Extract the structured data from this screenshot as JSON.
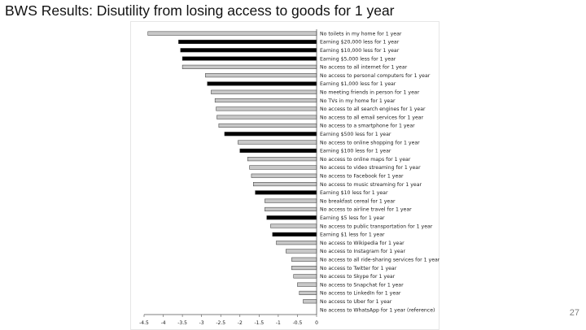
{
  "slide": {
    "title": "BWS Results: Disutility from losing access to goods for 1 year",
    "page_number": "27"
  },
  "colors": {
    "good_bar": "#c8c8c8",
    "money_bar": "#000000",
    "bar_outline": "#333333",
    "axis": "#555555"
  },
  "chart_data": {
    "type": "bar",
    "orientation": "horizontal",
    "title": "",
    "xlabel": "",
    "ylabel": "",
    "xlim": [
      -4.5,
      0
    ],
    "x_direction": "reversed",
    "xticks": [
      -4.5,
      -4,
      -3.5,
      -3,
      -2.5,
      -2,
      -1.5,
      -1,
      -0.5,
      0
    ],
    "xtick_labels": [
      "-4.5",
      "-4",
      "-3.5",
      "-3",
      "-2.5",
      "-2",
      "-1.5",
      "-1",
      "-0.5",
      "0"
    ],
    "grid": false,
    "legend": "none",
    "categories": [
      "No toilets in my home for 1 year",
      "Earning $20,000 less for 1 year",
      "Earning $10,000 less for 1 year",
      "Earning $5,000 less for 1 year",
      "No access to all internet for 1 year",
      "No access to personal computers for 1 year",
      "Earning $1,000 less for 1 year",
      "No meeting friends in person for 1 year",
      "No TVs in my home for 1 year",
      "No access to all search engines for 1 year",
      "No access to all email services for 1 year",
      "No access to a smartphone for 1 year",
      "Earning $500 less for 1 year",
      "No access to online shopping for 1 year",
      "Earning $100 less for 1 year",
      "No access to online maps for 1 year",
      "No access to video streaming for 1 year",
      "No access to Facebook for 1 year",
      "No access to music streaming for 1 year",
      "Earning $10 less for 1 year",
      "No breakfast cereal for 1 year",
      "No access to airline travel for 1 year",
      "Earning $5 less for 1 year",
      "No access to public transportation for 1 year",
      "Earning $1 less for 1 year",
      "No access to Wikipedia for 1 year",
      "No access to Instagram for 1 year",
      "No access to all ride-sharing services for 1 year",
      "No access to Twitter for 1 year",
      "No access to Skype for 1 year",
      "No access to Snapchat for 1 year",
      "No access to LinkedIn for 1 year",
      "No access to Uber for 1 year",
      "No access to WhatsApp for 1 year (reference)"
    ],
    "values": [
      -4.4,
      -3.6,
      -3.55,
      -3.5,
      -3.5,
      -2.9,
      -2.85,
      -2.75,
      -2.65,
      -2.62,
      -2.6,
      -2.55,
      -2.4,
      -2.05,
      -2.0,
      -1.8,
      -1.75,
      -1.7,
      -1.65,
      -1.6,
      -1.35,
      -1.35,
      -1.3,
      -1.2,
      -1.15,
      -1.05,
      -0.8,
      -0.65,
      -0.65,
      -0.6,
      -0.5,
      -0.45,
      -0.35,
      0
    ],
    "bar_kind": [
      "good",
      "money",
      "money",
      "money",
      "good",
      "good",
      "money",
      "good",
      "good",
      "good",
      "good",
      "good",
      "money",
      "good",
      "money",
      "good",
      "good",
      "good",
      "good",
      "money",
      "good",
      "good",
      "money",
      "good",
      "money",
      "good",
      "good",
      "good",
      "good",
      "good",
      "good",
      "good",
      "good",
      "good"
    ]
  }
}
